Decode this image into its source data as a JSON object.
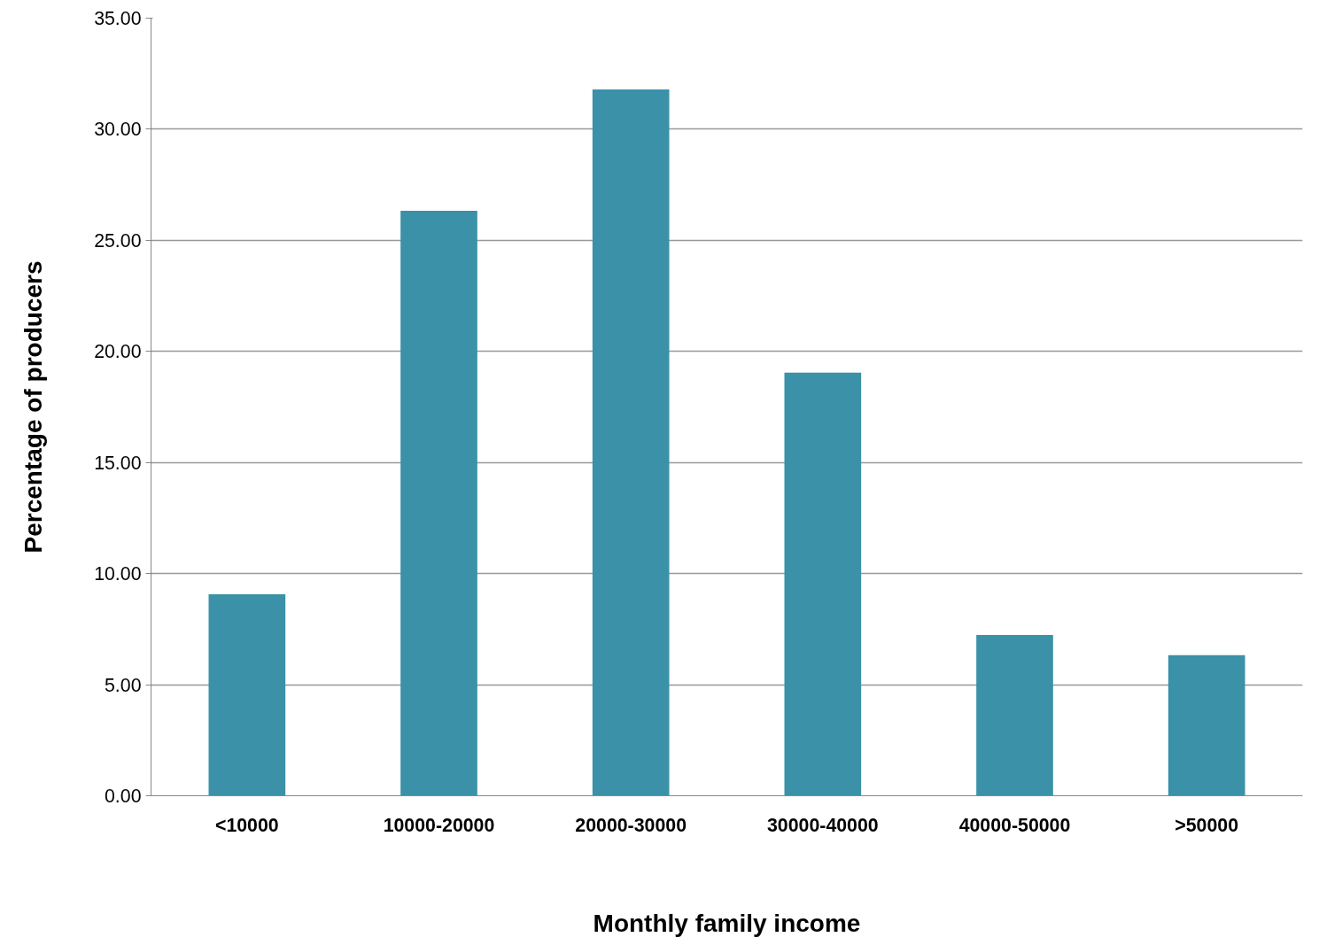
{
  "chart_data": {
    "type": "bar",
    "xlabel": "Monthly family income",
    "ylabel": "Percentage of producers",
    "categories": [
      "<10000",
      "10000-20000",
      "20000-30000",
      "30000-40000",
      "40000-50000",
      ">50000"
    ],
    "values": [
      9.07,
      26.33,
      31.79,
      19.04,
      7.24,
      6.33
    ],
    "color": "#3a91a8",
    "ylim": [
      0,
      35
    ],
    "yticks": [
      {
        "value": 0,
        "label": "0.00"
      },
      {
        "value": 5,
        "label": "5.00"
      },
      {
        "value": 10,
        "label": "10.00"
      },
      {
        "value": 15,
        "label": "15.00"
      },
      {
        "value": 20,
        "label": "20.00"
      },
      {
        "value": 25,
        "label": "25.00"
      },
      {
        "value": 30,
        "label": "30.00"
      },
      {
        "value": 35,
        "label": "35.00"
      }
    ],
    "grid": "y"
  }
}
